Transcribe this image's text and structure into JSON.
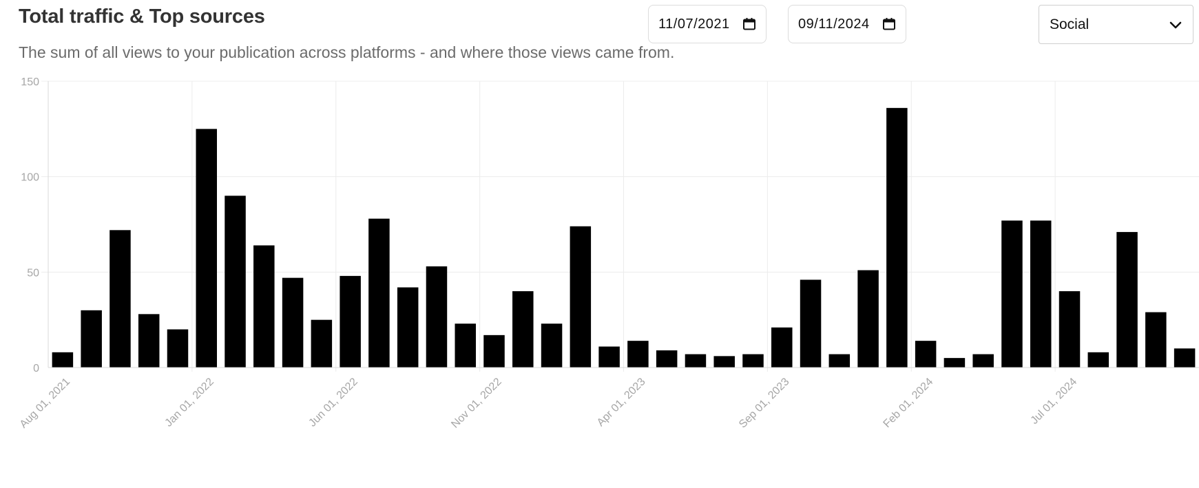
{
  "header": {
    "title": "Total traffic & Top sources",
    "subtitle": "The sum of all views to your publication across platforms - and where those views came from."
  },
  "controls": {
    "start_date": "11/07/2021",
    "end_date": "09/11/2024",
    "source_select": "Social"
  },
  "icons": {
    "date": "calendar-icon",
    "select": "chevron-down-icon"
  },
  "colors": {
    "bar": "#000000",
    "grid": "#ececec",
    "tick_text": "#a6a6a6"
  },
  "chart_data": {
    "type": "bar",
    "title": "",
    "xlabel": "",
    "ylabel": "",
    "ylim": [
      0,
      150
    ],
    "yticks": [
      0,
      50,
      100,
      150
    ],
    "grid": true,
    "categories": [
      "Aug 01, 2021",
      "Sep 01, 2021",
      "Oct 01, 2021",
      "Nov 01, 2021",
      "Dec 01, 2021",
      "Jan 01, 2022",
      "Feb 01, 2022",
      "Mar 01, 2022",
      "Apr 01, 2022",
      "May 01, 2022",
      "Jun 01, 2022",
      "Jul 01, 2022",
      "Aug 01, 2022",
      "Sep 01, 2022",
      "Oct 01, 2022",
      "Nov 01, 2022",
      "Dec 01, 2022",
      "Jan 01, 2023",
      "Feb 01, 2023",
      "Mar 01, 2023",
      "Apr 01, 2023",
      "May 01, 2023",
      "Jun 01, 2023",
      "Jul 01, 2023",
      "Aug 01, 2023",
      "Sep 01, 2023",
      "Oct 01, 2023",
      "Nov 01, 2023",
      "Dec 01, 2023",
      "Jan 01, 2024",
      "Feb 01, 2024",
      "Mar 01, 2024",
      "Apr 01, 2024",
      "May 01, 2024",
      "Jun 01, 2024",
      "Jul 01, 2024",
      "Aug 01, 2024",
      "Sep 01, 2024",
      "Oct 01, 2024",
      "Nov 01, 2024"
    ],
    "values": [
      8,
      30,
      72,
      28,
      20,
      125,
      90,
      64,
      47,
      25,
      48,
      78,
      42,
      53,
      23,
      17,
      40,
      23,
      74,
      11,
      14,
      9,
      7,
      6,
      7,
      21,
      46,
      7,
      51,
      136,
      14,
      5,
      7,
      77,
      77,
      40,
      8,
      71,
      29,
      10
    ],
    "x_tick_labels": [
      "Aug 01, 2021",
      "Jan 01, 2022",
      "Jun 01, 2022",
      "Nov 01, 2022",
      "Apr 01, 2023",
      "Sep 01, 2023",
      "Feb 01, 2024",
      "Jul 01, 2024"
    ]
  }
}
